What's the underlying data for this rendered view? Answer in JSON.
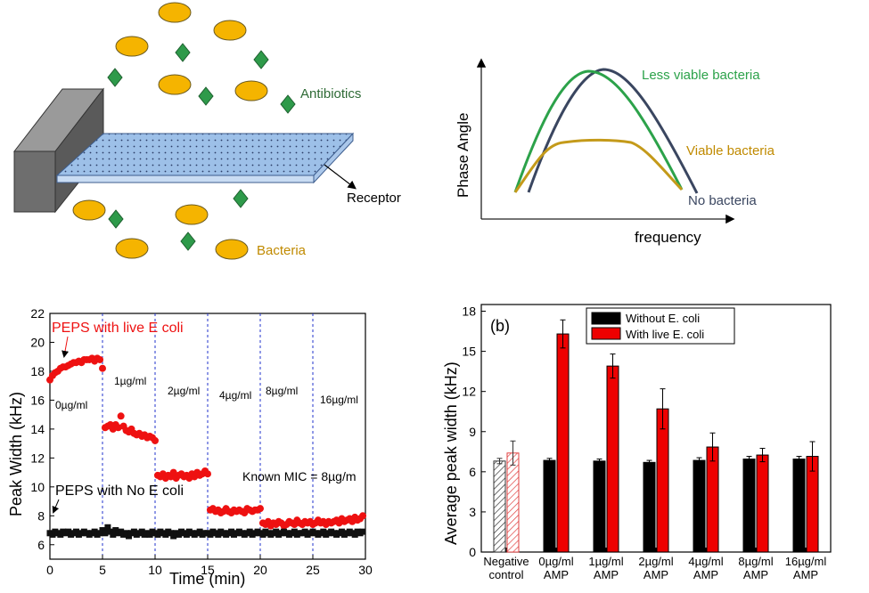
{
  "schematic": {
    "antibiotics_label": "Antibiotics",
    "receptor_label": "Receptor",
    "bacteria_label": "Bacteria"
  },
  "phase_sketch": {
    "ylabel": "Phase Angle",
    "xlabel": "frequency",
    "curves": [
      {
        "label": "Less viable bacteria",
        "color": "#2ca24a"
      },
      {
        "label": "Viable bacteria",
        "color": "#c49a1a"
      },
      {
        "label": "No bacteria",
        "color": "#3a4660"
      }
    ]
  },
  "chart_data": [
    {
      "type": "scatter",
      "xlabel": "Time (min)",
      "ylabel": "Peak Width (kHz)",
      "xlim": [
        0,
        30
      ],
      "ylim": [
        5,
        22
      ],
      "xticks": [
        0,
        5,
        10,
        15,
        20,
        25,
        30
      ],
      "yticks": [
        6,
        8,
        10,
        12,
        14,
        16,
        18,
        20,
        22
      ],
      "segment_lines": [
        5,
        10,
        15,
        20,
        25
      ],
      "concentration_labels": [
        "0µg/ml",
        "1µg/ml",
        "2µg/ml",
        "4µg/ml",
        "8µg/ml",
        "16µg/ml"
      ],
      "annotations": [
        "Known MIC = 8µg/m"
      ],
      "series": [
        {
          "name": "PEPS with live E coli",
          "color": "#ee1111",
          "marker": "circle",
          "x": [
            0,
            0.25,
            0.5,
            0.75,
            1,
            1.25,
            1.5,
            1.75,
            2,
            2.25,
            2.5,
            2.75,
            3,
            3.25,
            3.5,
            3.75,
            4,
            4.25,
            4.5,
            4.75,
            5,
            5.25,
            5.5,
            5.75,
            6,
            6.25,
            6.5,
            6.75,
            7,
            7.25,
            7.5,
            7.75,
            8,
            8.25,
            8.5,
            8.75,
            9,
            9.25,
            9.5,
            9.75,
            10,
            10.25,
            10.5,
            10.75,
            11,
            11.25,
            11.5,
            11.75,
            12,
            12.25,
            12.5,
            12.75,
            13,
            13.25,
            13.5,
            13.75,
            14,
            14.25,
            14.5,
            14.75,
            15,
            15.25,
            15.5,
            15.75,
            16,
            16.25,
            16.5,
            16.75,
            17,
            17.25,
            17.5,
            17.75,
            18,
            18.25,
            18.5,
            18.75,
            19,
            19.25,
            19.5,
            19.75,
            20,
            20.25,
            20.5,
            20.75,
            21,
            21.25,
            21.5,
            21.75,
            22,
            22.25,
            22.5,
            22.75,
            23,
            23.25,
            23.5,
            23.75,
            24,
            24.25,
            24.5,
            24.75,
            25,
            25.25,
            25.5,
            25.75,
            26,
            26.25,
            26.5,
            26.75,
            27,
            27.25,
            27.5,
            27.75,
            28,
            28.25,
            28.5,
            28.75,
            29,
            29.25,
            29.5,
            29.75
          ],
          "y": [
            17.4,
            17.7,
            17.9,
            18.0,
            18.2,
            18.3,
            18.3,
            18.4,
            18.5,
            18.6,
            18.6,
            18.7,
            18.6,
            18.8,
            18.8,
            18.8,
            18.9,
            18.7,
            18.9,
            18.8,
            18.2,
            14.1,
            14.2,
            14.3,
            14.0,
            14.3,
            14.1,
            14.9,
            14.2,
            13.9,
            13.8,
            14.0,
            13.7,
            13.6,
            13.7,
            13.5,
            13.6,
            13.4,
            13.5,
            13.4,
            13.2,
            10.8,
            10.7,
            10.9,
            10.6,
            10.8,
            10.7,
            11.0,
            10.6,
            10.8,
            10.9,
            10.7,
            10.8,
            10.6,
            10.9,
            10.7,
            11.0,
            10.8,
            10.9,
            11.1,
            10.9,
            8.4,
            8.5,
            8.3,
            8.4,
            8.2,
            8.3,
            8.5,
            8.3,
            8.2,
            8.4,
            8.3,
            8.4,
            8.3,
            8.2,
            8.5,
            8.4,
            8.3,
            8.4,
            8.4,
            8.5,
            7.5,
            7.4,
            7.6,
            7.3,
            7.5,
            7.4,
            7.6,
            7.5,
            7.3,
            7.4,
            7.6,
            7.5,
            7.4,
            7.7,
            7.5,
            7.4,
            7.6,
            7.5,
            7.6,
            7.4,
            7.5,
            7.7,
            7.5,
            7.6,
            7.4,
            7.6,
            7.5,
            7.6,
            7.7,
            7.5,
            7.8,
            7.6,
            7.7,
            7.8,
            7.6,
            7.9,
            7.7,
            7.8,
            8.0
          ]
        },
        {
          "name": "PEPS with No E coli",
          "color": "#111111",
          "marker": "square",
          "x": [
            0,
            0.25,
            0.5,
            0.75,
            1,
            1.25,
            1.5,
            1.75,
            2,
            2.25,
            2.5,
            2.75,
            3,
            3.25,
            3.5,
            3.75,
            4,
            4.25,
            4.5,
            4.75,
            5,
            5.25,
            5.5,
            5.75,
            6,
            6.25,
            6.5,
            6.75,
            7,
            7.25,
            7.5,
            7.75,
            8,
            8.25,
            8.5,
            8.75,
            9,
            9.25,
            9.5,
            9.75,
            10,
            10.25,
            10.5,
            10.75,
            11,
            11.25,
            11.5,
            11.75,
            12,
            12.25,
            12.5,
            12.75,
            13,
            13.25,
            13.5,
            13.75,
            14,
            14.25,
            14.5,
            14.75,
            15,
            15.25,
            15.5,
            15.75,
            16,
            16.25,
            16.5,
            16.75,
            17,
            17.25,
            17.5,
            17.75,
            18,
            18.25,
            18.5,
            18.75,
            19,
            19.25,
            19.5,
            19.75,
            20,
            20.25,
            20.5,
            20.75,
            21,
            21.25,
            21.5,
            21.75,
            22,
            22.25,
            22.5,
            22.75,
            23,
            23.25,
            23.5,
            23.75,
            24,
            24.25,
            24.5,
            24.75,
            25,
            25.25,
            25.5,
            25.75,
            26,
            26.25,
            26.5,
            26.75,
            27,
            27.25,
            27.5,
            27.75,
            28,
            28.25,
            28.5,
            28.75,
            29,
            29.25,
            29.5,
            29.75
          ],
          "y": [
            6.8,
            6.7,
            6.9,
            6.8,
            6.7,
            6.9,
            6.8,
            6.9,
            6.7,
            6.8,
            6.9,
            6.7,
            6.8,
            6.9,
            6.8,
            6.7,
            6.8,
            6.9,
            6.7,
            6.8,
            7.0,
            6.8,
            7.2,
            6.9,
            6.7,
            7.0,
            6.8,
            6.9,
            6.7,
            6.8,
            6.6,
            6.8,
            6.9,
            6.7,
            6.8,
            6.9,
            6.7,
            6.8,
            6.7,
            6.9,
            6.8,
            6.7,
            6.9,
            6.8,
            6.7,
            6.9,
            6.8,
            6.6,
            6.8,
            6.7,
            6.9,
            6.8,
            6.7,
            6.9,
            6.8,
            6.7,
            6.8,
            6.9,
            6.7,
            6.8,
            6.8,
            6.7,
            6.9,
            6.8,
            6.7,
            6.9,
            6.8,
            6.7,
            6.8,
            6.9,
            6.7,
            6.8,
            6.9,
            6.8,
            6.7,
            6.8,
            6.9,
            6.7,
            6.8,
            6.9,
            6.8,
            6.7,
            6.9,
            6.8,
            6.7,
            6.8,
            6.9,
            6.7,
            6.8,
            6.9,
            6.8,
            6.7,
            6.8,
            6.9,
            6.7,
            6.8,
            6.8,
            6.9,
            6.7,
            6.8,
            6.9,
            6.8,
            6.7,
            6.8,
            6.9,
            6.7,
            6.8,
            6.9,
            6.8,
            6.7,
            6.8,
            6.9,
            6.7,
            6.8,
            6.9,
            6.8,
            6.7,
            6.9,
            6.8,
            6.9
          ]
        }
      ]
    },
    {
      "type": "bar",
      "panel_label": "(b)",
      "ylabel": "Average peak width (kHz)",
      "ylim": [
        0,
        18.5
      ],
      "yticks": [
        0,
        3,
        6,
        9,
        12,
        15,
        18
      ],
      "categories": [
        [
          "Negative",
          "control"
        ],
        [
          "0µg/ml",
          "AMP"
        ],
        [
          "1µg/ml",
          "AMP"
        ],
        [
          "2µg/ml",
          "AMP"
        ],
        [
          "4µg/ml",
          "AMP"
        ],
        [
          "8µg/ml",
          "AMP"
        ],
        [
          "16µg/ml",
          "AMP"
        ]
      ],
      "series": [
        {
          "name": "Without E. coli",
          "color": "#000000",
          "values": [
            6.8,
            6.85,
            6.8,
            6.7,
            6.85,
            6.95,
            6.95
          ],
          "errors": [
            0.2,
            0.15,
            0.15,
            0.15,
            0.2,
            0.2,
            0.2
          ]
        },
        {
          "name": "With live E. coli",
          "color": "#ee0000",
          "values": [
            7.4,
            16.3,
            13.9,
            10.7,
            7.85,
            7.25,
            7.15
          ],
          "errors": [
            0.9,
            1.05,
            0.9,
            1.5,
            1.05,
            0.5,
            1.1
          ]
        }
      ],
      "hatched_category": 0,
      "legend": "top-right"
    }
  ]
}
